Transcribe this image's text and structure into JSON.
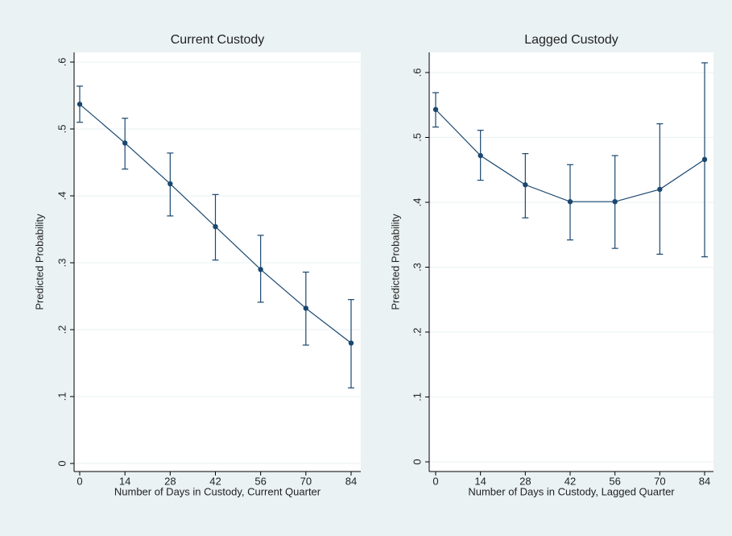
{
  "chart_data": [
    {
      "type": "line",
      "title": "Current Custody",
      "x_label": "Number of Days in Custody, Current Quarter",
      "y_label": "Predicted Probability",
      "x": [
        0,
        14,
        28,
        42,
        56,
        70,
        84
      ],
      "series": [
        {
          "color": "#1a476f",
          "values": [
            0.537,
            0.479,
            0.418,
            0.354,
            0.29,
            0.232,
            0.18
          ],
          "lower": [
            0.51,
            0.44,
            0.37,
            0.304,
            0.241,
            0.177,
            0.113
          ],
          "upper": [
            0.564,
            0.516,
            0.464,
            0.402,
            0.341,
            0.286,
            0.245
          ]
        }
      ],
      "xlim": [
        0,
        84
      ],
      "xticks": [
        0,
        14,
        28,
        42,
        56,
        70,
        84
      ],
      "ylim": [
        0,
        0.6
      ],
      "yticks": [
        0,
        {
          "value": 0.1,
          "label": ".1"
        },
        {
          "value": 0.2,
          "label": ".2"
        },
        {
          "value": 0.3,
          "label": ".3"
        },
        {
          "value": 0.4,
          "label": ".4"
        },
        {
          "value": 0.5,
          "label": ".5"
        },
        {
          "value": 0.6,
          "label": ".6"
        }
      ],
      "grid": true
    },
    {
      "type": "line",
      "title": "Lagged Custody",
      "x_label": "Number of Days in Custody, Lagged Quarter",
      "y_label": "Predicted Probability",
      "x": [
        0,
        14,
        28,
        42,
        56,
        70,
        84
      ],
      "series": [
        {
          "color": "#1a476f",
          "values": [
            0.543,
            0.472,
            0.427,
            0.401,
            0.401,
            0.42,
            0.466
          ],
          "lower": [
            0.516,
            0.434,
            0.376,
            0.342,
            0.329,
            0.32,
            0.316
          ],
          "upper": [
            0.569,
            0.511,
            0.475,
            0.458,
            0.472,
            0.521,
            0.615
          ]
        }
      ],
      "xlim": [
        0,
        84
      ],
      "xticks": [
        0,
        14,
        28,
        42,
        56,
        70,
        84
      ],
      "ylim": [
        0,
        0.6
      ],
      "yticks": [
        0,
        {
          "value": 0.1,
          "label": ".1"
        },
        {
          "value": 0.2,
          "label": ".2"
        },
        {
          "value": 0.3,
          "label": ".3"
        },
        {
          "value": 0.4,
          "label": ".4"
        },
        {
          "value": 0.5,
          "label": ".5"
        },
        {
          "value": 0.6,
          "label": ".6"
        }
      ],
      "grid": true
    }
  ]
}
